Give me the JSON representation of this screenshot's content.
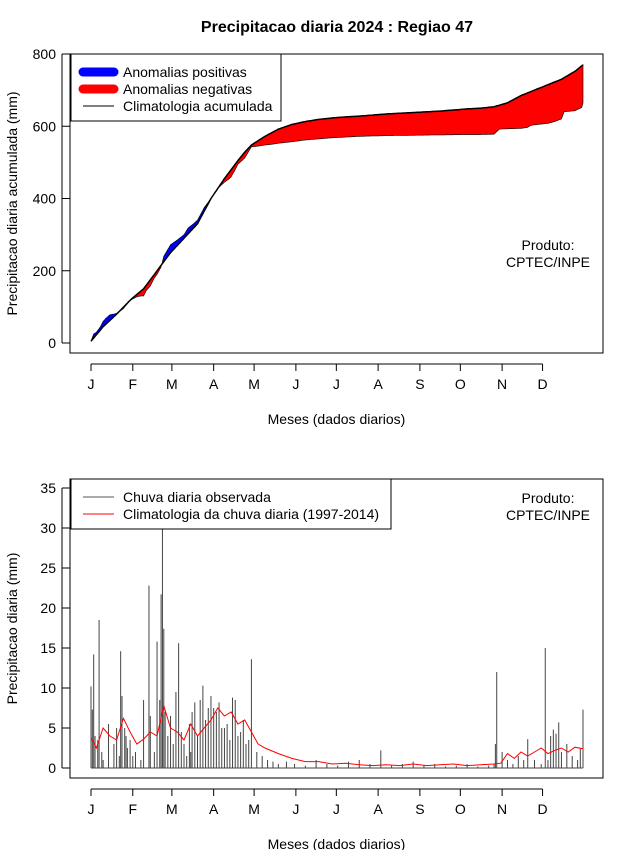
{
  "title": "Precipitacao diaria 2024 : Regiao 47",
  "chart_data": [
    {
      "type": "area",
      "ylabel": "Precipitacao diaria acumulada (mm)",
      "xlabel": "Meses (dados diarios)",
      "ylim": [
        0,
        800
      ],
      "yticks": [
        "0",
        "200",
        "400",
        "600",
        "800"
      ],
      "xticks": [
        "J",
        "F",
        "M",
        "A",
        "M",
        "J",
        "J",
        "A",
        "S",
        "O",
        "N",
        "D"
      ],
      "legend_position": "top-left",
      "legend": [
        {
          "label": "Anomalias positivas",
          "color": "#0000ff",
          "style": "thick-line"
        },
        {
          "label": "Anomalias negativas",
          "color": "#ff0000",
          "style": "thick-line"
        },
        {
          "label": "Climatologia acumulada",
          "color": "#000000",
          "style": "line"
        }
      ],
      "note_lines": [
        "Produto:",
        "CPTEC/INPE"
      ],
      "climatology_accumulated": {
        "day": [
          1,
          10,
          20,
          30,
          32,
          40,
          50,
          60,
          70,
          80,
          90,
          100,
          110,
          115,
          120,
          130,
          140,
          150,
          160,
          170,
          180,
          190,
          200,
          210,
          220,
          230,
          240,
          250,
          260,
          270,
          280,
          290,
          300,
          310,
          320,
          330,
          340,
          350,
          360,
          366
        ],
        "mm": [
          5,
          45,
          80,
          118,
          125,
          150,
          200,
          250,
          290,
          330,
          400,
          455,
          505,
          528,
          548,
          572,
          592,
          605,
          613,
          619,
          623,
          626,
          628,
          631,
          634,
          636,
          638,
          640,
          642,
          645,
          648,
          650,
          654,
          665,
          685,
          700,
          715,
          730,
          752,
          770
        ]
      },
      "observed_accumulated": {
        "day": [
          1,
          3,
          5,
          8,
          10,
          12,
          15,
          20,
          25,
          30,
          35,
          38,
          40,
          42,
          45,
          48,
          50,
          53,
          55,
          60,
          65,
          70,
          73,
          77,
          80,
          85,
          88,
          90,
          95,
          100,
          103,
          105,
          108,
          110,
          113,
          115,
          120,
          125,
          130,
          135,
          140,
          150,
          160,
          170,
          180,
          190,
          200,
          210,
          220,
          240,
          260,
          280,
          290,
          300,
          302,
          304,
          310,
          320,
          325,
          327,
          330,
          340,
          345,
          350,
          352,
          360,
          365,
          366
        ],
        "mm": [
          5,
          25,
          30,
          45,
          60,
          68,
          78,
          82,
          95,
          118,
          128,
          130,
          130,
          145,
          158,
          180,
          190,
          210,
          240,
          272,
          285,
          300,
          318,
          330,
          340,
          375,
          390,
          400,
          428,
          445,
          453,
          460,
          480,
          495,
          505,
          512,
          543,
          545,
          548,
          550,
          553,
          557,
          562,
          565,
          568,
          570,
          572,
          573,
          574,
          575,
          576,
          577,
          577,
          578,
          585,
          592,
          593,
          594,
          597,
          602,
          604,
          608,
          613,
          620,
          640,
          643,
          652,
          665
        ]
      }
    },
    {
      "type": "bar",
      "ylabel": "Precipitacao diaria (mm)",
      "xlabel": "Meses (dados diarios)",
      "ylim": [
        0,
        35
      ],
      "yticks": [
        "0",
        "5",
        "10",
        "15",
        "20",
        "25",
        "30",
        "35"
      ],
      "xticks": [
        "J",
        "F",
        "M",
        "A",
        "M",
        "J",
        "J",
        "A",
        "S",
        "O",
        "N",
        "D"
      ],
      "legend_position": "top-left",
      "legend": [
        {
          "label": "Chuva diaria observada",
          "color": "#555555",
          "style": "line"
        },
        {
          "label": "Climatologia da chuva diaria (1997-2014)",
          "color": "#ff0000",
          "style": "line"
        }
      ],
      "note_lines": [
        "Produto:",
        "CPTEC/INPE"
      ],
      "observed_peaks": {
        "day": [
          1,
          2,
          3,
          4,
          6,
          7,
          9,
          10,
          14,
          18,
          20,
          22,
          23,
          24,
          26,
          27,
          28,
          30,
          32,
          34,
          38,
          40,
          44,
          45,
          48,
          50,
          52,
          53,
          54,
          55,
          56,
          58,
          60,
          62,
          64,
          66,
          68,
          70,
          72,
          74,
          75,
          76,
          78,
          80,
          82,
          84,
          86,
          88,
          90,
          92,
          94,
          96,
          98,
          100,
          102,
          104,
          106,
          108,
          110,
          112,
          114,
          116,
          118,
          120,
          124,
          128,
          132,
          136,
          140,
          146,
          152,
          160,
          168,
          176,
          184,
          192,
          200,
          208,
          216,
          224,
          232,
          240,
          248,
          256,
          264,
          272,
          280,
          288,
          296,
          300,
          301,
          302,
          306,
          310,
          314,
          318,
          322,
          325,
          330,
          335,
          338,
          340,
          342,
          344,
          346,
          348,
          350,
          354,
          358,
          362,
          364,
          366
        ],
        "mm": [
          10.2,
          7.3,
          14.2,
          4.0,
          3.5,
          18.5,
          2.0,
          1.0,
          5.5,
          3.0,
          5.0,
          1.5,
          14.6,
          9.0,
          5.0,
          4.0,
          2.5,
          3.5,
          1.5,
          2.0,
          1.0,
          8.5,
          22.8,
          6.5,
          2.0,
          15.8,
          8.5,
          21.7,
          30.0,
          17.4,
          7.0,
          4.0,
          6.5,
          3.0,
          9.5,
          15.6,
          4.5,
          3.0,
          1.5,
          5.5,
          2.0,
          7.0,
          8.2,
          4.0,
          8.5,
          10.3,
          6.0,
          7.5,
          9.0,
          7.5,
          7.0,
          8.2,
          5.0,
          5.0,
          5.5,
          3.5,
          8.8,
          8.5,
          4.0,
          4.5,
          6.0,
          3.0,
          3.5,
          13.6,
          2.0,
          1.5,
          1.0,
          0.8,
          0.5,
          0.8,
          0.5,
          0.3,
          1.0,
          0.5,
          0.3,
          0.8,
          1.0,
          0.5,
          2.2,
          0.3,
          0.5,
          0.8,
          0.3,
          0.5,
          0.2,
          0.3,
          0.5,
          0.2,
          0.3,
          0.5,
          3.0,
          12.0,
          2.0,
          1.0,
          0.5,
          1.5,
          1.0,
          3.6,
          1.0,
          0.5,
          15.0,
          1.0,
          4.0,
          4.8,
          4.3,
          5.7,
          2.0,
          3.0,
          1.5,
          1.0,
          2.5,
          7.3
        ]
      },
      "climatology_daily": {
        "day": [
          1,
          5,
          10,
          15,
          20,
          25,
          30,
          35,
          40,
          45,
          50,
          55,
          60,
          65,
          70,
          75,
          80,
          85,
          90,
          95,
          100,
          105,
          110,
          115,
          120,
          125,
          130,
          140,
          150,
          160,
          170,
          180,
          190,
          200,
          210,
          220,
          230,
          240,
          250,
          260,
          270,
          280,
          290,
          300,
          305,
          310,
          315,
          320,
          325,
          330,
          335,
          340,
          345,
          350,
          355,
          360,
          366
        ],
        "mm": [
          3.8,
          2.5,
          5.0,
          4.0,
          3.5,
          6.2,
          4.5,
          3.0,
          3.6,
          4.5,
          4.0,
          7.8,
          5.0,
          4.5,
          3.5,
          5.5,
          4.0,
          5.0,
          6.0,
          7.5,
          6.5,
          7.0,
          5.5,
          6.0,
          4.5,
          3.0,
          2.5,
          1.8,
          1.2,
          0.8,
          0.8,
          0.5,
          0.6,
          0.4,
          0.3,
          0.4,
          0.3,
          0.5,
          0.3,
          0.4,
          0.5,
          0.3,
          0.4,
          0.5,
          0.6,
          1.8,
          1.2,
          2.0,
          1.5,
          2.0,
          2.5,
          1.8,
          2.2,
          2.5,
          2.0,
          2.6,
          2.4
        ]
      }
    }
  ]
}
